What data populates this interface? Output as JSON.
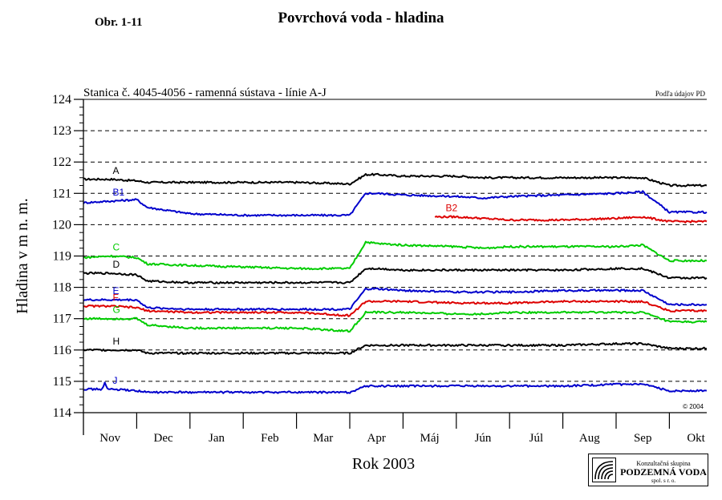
{
  "header": {
    "figure_number": "Obr. 1-11",
    "title": "Povrchová voda - hladina"
  },
  "logo": {
    "line1": "Konzultačná skupina",
    "line2": "PODZEMNÁ VODA",
    "line3": "spol. s r. o."
  },
  "colors": {
    "black": "#000000",
    "blue": "#0000cc",
    "red": "#dd0000",
    "green": "#00cc00"
  },
  "chart_data": {
    "type": "line",
    "title": "Stanica č. 4045-4056 - ramenná sústava  - línie A-J",
    "source_note": "Podľa údajov PD",
    "copyright": "© 2004",
    "xlabel": "Rok 2003",
    "ylabel": "Hladina v m n. m.",
    "ylim": [
      114,
      124
    ],
    "yticks": [
      114,
      115,
      116,
      117,
      118,
      119,
      120,
      121,
      122,
      123,
      124
    ],
    "y_tick_labels": [
      "114",
      "115",
      "116",
      "117",
      "118",
      "119",
      "120",
      "121",
      "122",
      "123",
      "124"
    ],
    "x_unit": "month index (Nov = 0)",
    "xlim": [
      0,
      11.7
    ],
    "month_labels": [
      "Nov",
      "Dec",
      "Jan",
      "Feb",
      "Mar",
      "Apr",
      "Máj",
      "Jún",
      "Júl",
      "Aug",
      "Sep",
      "Okt"
    ],
    "grid": {
      "horizontal_dashed": true,
      "vertical": false
    },
    "series": [
      {
        "name": "A",
        "color": "#000000",
        "x": [
          0,
          0.5,
          1,
          1.2,
          2,
          3,
          4,
          5,
          5.3,
          5.5,
          6,
          7,
          7.5,
          8,
          9,
          10,
          10.5,
          11,
          11.7
        ],
        "y": [
          121.45,
          121.45,
          121.4,
          121.35,
          121.35,
          121.35,
          121.35,
          121.3,
          121.6,
          121.6,
          121.55,
          121.55,
          121.5,
          121.5,
          121.5,
          121.5,
          121.5,
          121.25,
          121.25
        ]
      },
      {
        "name": "B1",
        "color": "#0000cc",
        "x": [
          0,
          0.5,
          1,
          1.2,
          2,
          3,
          4,
          5,
          5.3,
          5.5,
          6,
          7,
          7.5,
          8,
          9,
          10,
          10.5,
          11,
          11.7
        ],
        "y": [
          120.7,
          120.75,
          120.8,
          120.55,
          120.35,
          120.3,
          120.3,
          120.3,
          121.0,
          121.0,
          120.95,
          120.9,
          120.85,
          120.9,
          120.95,
          121.0,
          121.05,
          120.4,
          120.4
        ]
      },
      {
        "name": "B2",
        "color": "#dd0000",
        "x": [
          6.6,
          7,
          8,
          9,
          10,
          10.5,
          11,
          11.7
        ],
        "y": [
          120.25,
          120.25,
          120.15,
          120.15,
          120.2,
          120.25,
          120.1,
          120.1
        ]
      },
      {
        "name": "C",
        "color": "#00cc00",
        "x": [
          0,
          0.5,
          1,
          1.2,
          2,
          3,
          4,
          5,
          5.3,
          5.5,
          6,
          7,
          7.5,
          8,
          9,
          10,
          10.5,
          11,
          11.7
        ],
        "y": [
          118.95,
          119.0,
          118.95,
          118.75,
          118.7,
          118.65,
          118.6,
          118.6,
          119.45,
          119.4,
          119.35,
          119.3,
          119.25,
          119.3,
          119.3,
          119.3,
          119.35,
          118.85,
          118.85
        ]
      },
      {
        "name": "D",
        "color": "#000000",
        "x": [
          0,
          0.5,
          1,
          1.2,
          2,
          3,
          4,
          5,
          5.3,
          5.5,
          6,
          7,
          7.5,
          8,
          9,
          10,
          10.5,
          11,
          11.7
        ],
        "y": [
          118.45,
          118.45,
          118.4,
          118.2,
          118.15,
          118.15,
          118.15,
          118.15,
          118.6,
          118.6,
          118.55,
          118.55,
          118.55,
          118.55,
          118.55,
          118.6,
          118.6,
          118.3,
          118.3
        ]
      },
      {
        "name": "E",
        "color": "#0000cc",
        "x": [
          0,
          0.5,
          1,
          1.2,
          2,
          3,
          4,
          5,
          5.3,
          5.5,
          6,
          7,
          7.5,
          8,
          9,
          10,
          10.5,
          11,
          11.7
        ],
        "y": [
          117.6,
          117.6,
          117.6,
          117.35,
          117.3,
          117.3,
          117.3,
          117.3,
          117.95,
          117.95,
          117.9,
          117.85,
          117.85,
          117.85,
          117.9,
          117.9,
          117.9,
          117.45,
          117.45
        ]
      },
      {
        "name": "F",
        "color": "#dd0000",
        "x": [
          0,
          0.5,
          1,
          1.2,
          2,
          3,
          4,
          5,
          5.3,
          5.5,
          6,
          7,
          7.5,
          8,
          9,
          10,
          10.5,
          11,
          11.7
        ],
        "y": [
          117.4,
          117.4,
          117.35,
          117.25,
          117.2,
          117.2,
          117.2,
          117.1,
          117.55,
          117.55,
          117.55,
          117.5,
          117.5,
          117.5,
          117.55,
          117.55,
          117.55,
          117.25,
          117.25
        ]
      },
      {
        "name": "G",
        "color": "#00cc00",
        "x": [
          0,
          0.5,
          1,
          1.2,
          2,
          3,
          4,
          5,
          5.3,
          5.5,
          6,
          7,
          7.5,
          8,
          9,
          10,
          10.5,
          11,
          11.7
        ],
        "y": [
          117.0,
          117.0,
          117.0,
          116.8,
          116.7,
          116.7,
          116.7,
          116.6,
          117.2,
          117.2,
          117.2,
          117.15,
          117.15,
          117.2,
          117.2,
          117.2,
          117.2,
          116.9,
          116.9
        ]
      },
      {
        "name": "H",
        "color": "#000000",
        "x": [
          0,
          0.5,
          1,
          1.2,
          2,
          3,
          4,
          5,
          5.3,
          5.5,
          6,
          7,
          7.5,
          8,
          9,
          10,
          10.5,
          11,
          11.7
        ],
        "y": [
          116.0,
          116.0,
          116.0,
          115.9,
          115.9,
          115.9,
          115.9,
          115.9,
          116.15,
          116.15,
          116.15,
          116.15,
          116.15,
          116.15,
          116.15,
          116.2,
          116.2,
          116.05,
          116.05
        ]
      },
      {
        "name": "J",
        "color": "#0000cc",
        "x": [
          0,
          0.35,
          0.4,
          0.45,
          0.5,
          1,
          1.2,
          2,
          3,
          4,
          5,
          5.3,
          5.5,
          6,
          7,
          7.5,
          8,
          9,
          10,
          10.5,
          11,
          11.7
        ],
        "y": [
          114.75,
          114.75,
          114.95,
          114.75,
          114.75,
          114.7,
          114.65,
          114.65,
          114.65,
          114.65,
          114.65,
          114.85,
          114.85,
          114.85,
          114.85,
          114.85,
          114.85,
          114.85,
          114.9,
          114.9,
          114.7,
          114.7
        ]
      }
    ]
  }
}
